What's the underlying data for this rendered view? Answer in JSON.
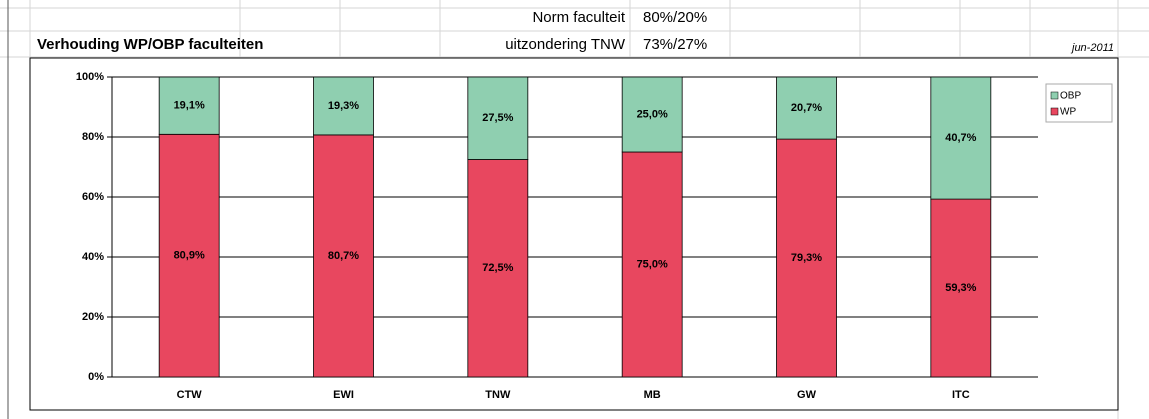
{
  "chart_data": {
    "type": "stacked_bar",
    "title": "Verhouding WP/OBP faculteiten",
    "annotations": {
      "norm_label": "Norm faculteit",
      "norm_value": "80%/20%",
      "exception_label": "uitzondering TNW",
      "exception_value": "73%/27%",
      "date": "jun-2011"
    },
    "categories": [
      "CTW",
      "EWI",
      "TNW",
      "MB",
      "GW",
      "ITC"
    ],
    "series": [
      {
        "name": "WP",
        "color": "#e8475f",
        "values": [
          80.9,
          80.7,
          72.5,
          75.0,
          79.3,
          59.3
        ],
        "value_labels": [
          "80,9%",
          "80,7%",
          "72,5%",
          "75,0%",
          "79,3%",
          "59,3%"
        ]
      },
      {
        "name": "OBP",
        "color": "#8fcfb0",
        "values": [
          19.1,
          19.3,
          27.5,
          25.0,
          20.7,
          40.7
        ],
        "value_labels": [
          "19,1%",
          "19,3%",
          "27,5%",
          "25,0%",
          "20,7%",
          "40,7%"
        ]
      }
    ],
    "ylim": [
      0,
      100
    ],
    "yticks": [
      {
        "value": 0,
        "label": "0%"
      },
      {
        "value": 20,
        "label": "20%"
      },
      {
        "value": 40,
        "label": "40%"
      },
      {
        "value": 60,
        "label": "60%"
      },
      {
        "value": 80,
        "label": "80%"
      },
      {
        "value": 100,
        "label": "100%"
      }
    ],
    "grid": true,
    "legend": "right"
  }
}
